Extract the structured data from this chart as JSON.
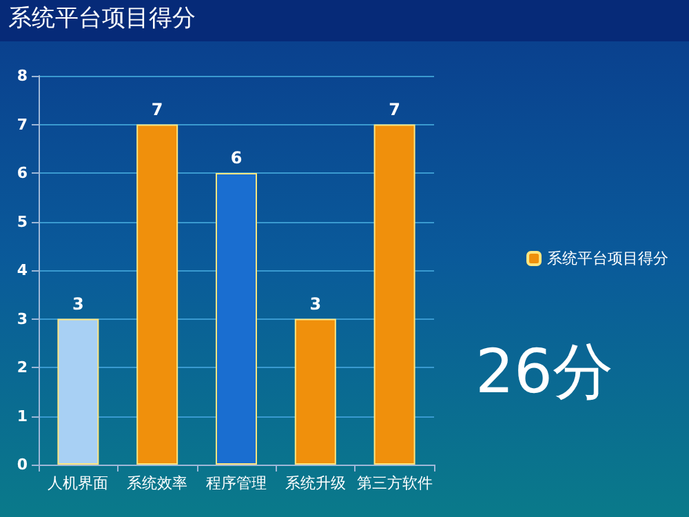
{
  "chart_data": {
    "type": "bar",
    "title": "系统平台项目得分",
    "categories": [
      "人机界面",
      "系统效率",
      "程序管理",
      "系统升级",
      "第三方软件"
    ],
    "series": [
      {
        "name": "系统平台项目得分",
        "color": "#f0900c",
        "colors": [
          "#a8d0f4",
          "#f0900c",
          "#1a6ed0",
          "#f0900c",
          "#f0900c"
        ],
        "values": [
          3,
          7,
          6,
          3,
          7
        ]
      }
    ],
    "ylim": [
      0,
      8
    ],
    "yticks": [
      0,
      1,
      2,
      3,
      4,
      5,
      6,
      7,
      8
    ],
    "grid": "y",
    "legend": "right",
    "data_labels": true,
    "annotations": [
      "26分"
    ]
  }
}
